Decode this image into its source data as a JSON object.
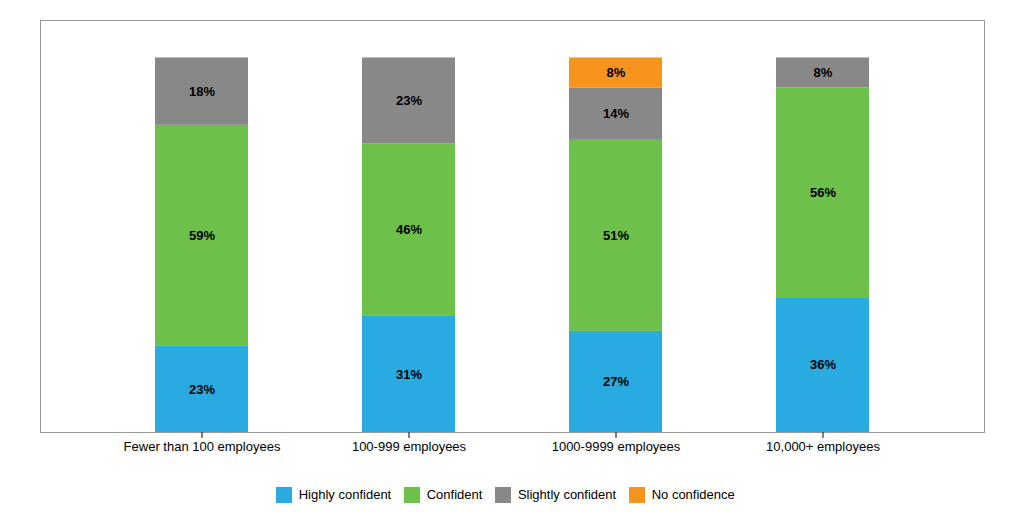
{
  "chart_data": {
    "type": "bar",
    "stacked": true,
    "categories": [
      "Fewer than 100 employees",
      "100-999 employees",
      "1000-9999 employees",
      "10,000+ employees"
    ],
    "series": [
      {
        "name": "Highly confident",
        "color": "#29ABE2",
        "values": [
          23,
          31,
          27,
          36
        ],
        "value_labels": [
          "23%",
          "31%",
          "27%",
          "36%"
        ]
      },
      {
        "name": "Confident",
        "color": "#6DC04A",
        "values": [
          59,
          46,
          51,
          56
        ],
        "value_labels": [
          "59%",
          "46%",
          "51%",
          "56%"
        ]
      },
      {
        "name": "Slightly confident",
        "color": "#888888",
        "values": [
          18,
          23,
          14,
          8
        ],
        "value_labels": [
          "18%",
          "23%",
          "14%",
          "8%"
        ]
      },
      {
        "name": "No confidence",
        "color": "#F7941D",
        "values": [
          0,
          0,
          8,
          0
        ],
        "value_labels": [
          null,
          null,
          "8%",
          null
        ]
      }
    ],
    "ylim": [
      0,
      110
    ],
    "yticks": [],
    "grid": false,
    "data_labels": true,
    "tick_labels": "x",
    "legend": "bottom"
  }
}
